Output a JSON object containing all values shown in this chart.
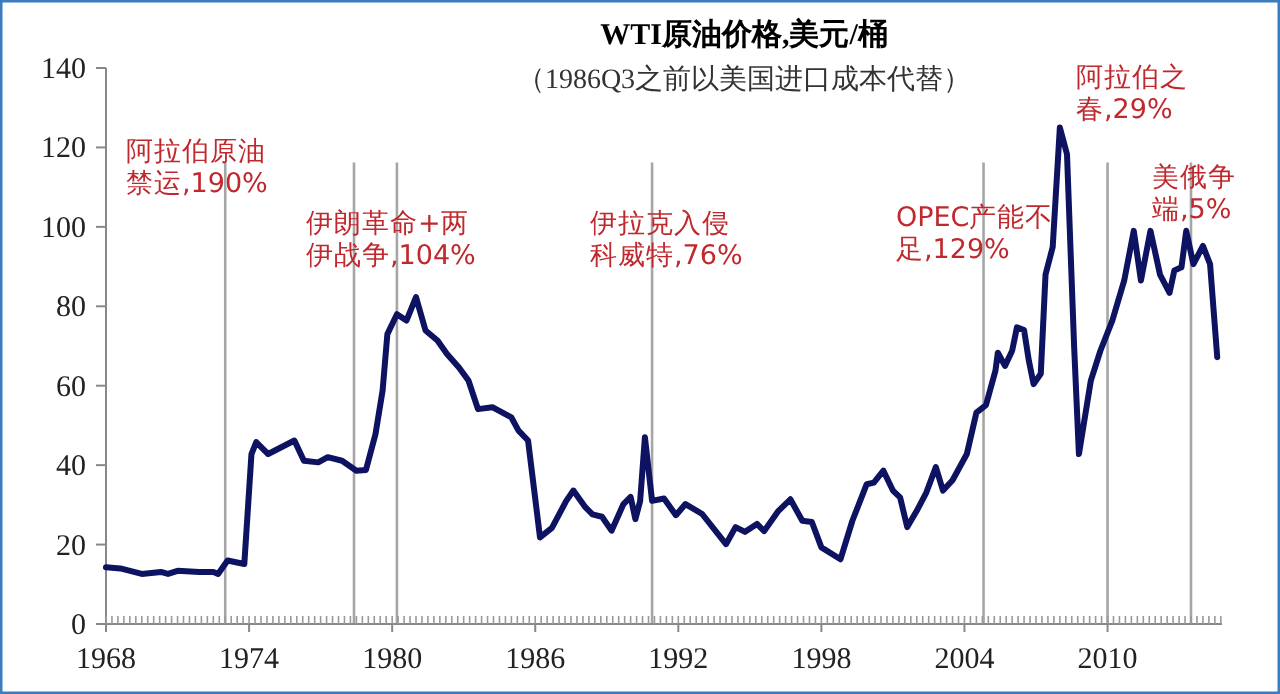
{
  "chart_data": {
    "type": "line",
    "title": "WTI原油价格,美元/桶",
    "subtitle": "（1986Q3之前以美国进口成本代替）",
    "x": [
      1968.0,
      1968.6,
      1969.5,
      1970.3,
      1970.6,
      1971.0,
      1971.9,
      1972.5,
      1972.7,
      1973.1,
      1973.8,
      1974.1,
      1974.3,
      1974.8,
      1975.9,
      1976.3,
      1976.9,
      1977.3,
      1977.9,
      1978.5,
      1978.9,
      1979.3,
      1979.6,
      1979.8,
      1980.2,
      1980.6,
      1981.0,
      1981.4,
      1981.9,
      1982.3,
      1982.8,
      1983.2,
      1983.6,
      1984.2,
      1985.0,
      1985.3,
      1985.7,
      1986.2,
      1986.7,
      1987.3,
      1987.6,
      1988.1,
      1988.4,
      1988.8,
      1989.2,
      1989.7,
      1990.0,
      1990.2,
      1990.4,
      1990.6,
      1990.9,
      1991.4,
      1991.9,
      1992.3,
      1993.0,
      1994.0,
      1994.4,
      1994.8,
      1995.3,
      1995.6,
      1996.2,
      1996.7,
      1997.2,
      1997.6,
      1998.0,
      1998.8,
      1999.3,
      1999.9,
      2000.2,
      2000.6,
      2001.0,
      2001.3,
      2001.6,
      2002.0,
      2002.4,
      2002.8,
      2003.1,
      2003.5,
      2004.1,
      2004.5,
      2004.9,
      2005.3,
      2005.4,
      2005.7,
      2006.0,
      2006.2,
      2006.5,
      2006.7,
      2006.9,
      2007.2,
      2007.4,
      2007.7,
      2008.0,
      2008.3,
      2008.6,
      2008.8,
      2009.3,
      2009.7,
      2010.2,
      2010.7,
      2011.1,
      2011.4,
      2011.8,
      2012.2,
      2012.6,
      2012.8,
      2013.1,
      2013.3,
      2013.6,
      2014.0,
      2014.3,
      2014.6
    ],
    "series": [
      {
        "color": "#0d1261",
        "values": [
          14.3,
          14,
          12.6,
          13.1,
          12.6,
          13.4,
          13.1,
          13.1,
          12.6,
          16,
          15.1,
          42.8,
          45.8,
          42.8,
          46.2,
          41.1,
          40.7,
          42,
          41.1,
          38.6,
          38.8,
          47.8,
          58.8,
          73,
          78,
          76.4,
          82.3,
          73.9,
          71.4,
          68,
          64.6,
          61.3,
          54.1,
          54.6,
          52,
          48.7,
          46.2,
          21.8,
          24.2,
          31,
          33.6,
          29.4,
          27.6,
          27,
          23.5,
          30.2,
          32,
          26.4,
          31,
          47,
          31,
          31.6,
          27.4,
          30.2,
          27.7,
          20.1,
          24.4,
          23.2,
          25.2,
          23.4,
          28.5,
          31.4,
          26,
          25.7,
          19.3,
          16.3,
          26,
          35.2,
          35.6,
          38.6,
          33.6,
          31.9,
          24.4,
          28.5,
          33.1,
          39.5,
          33.6,
          36.2,
          42.8,
          53.2,
          55.1,
          63.8,
          68.3,
          65,
          68.8,
          74.7,
          74,
          66.3,
          60.4,
          63,
          88,
          94.9,
          125,
          118.3,
          69.7,
          42.8,
          61.3,
          68.8,
          76.4,
          86.5,
          99,
          86.5,
          99,
          88,
          83.4,
          89,
          89.8,
          99,
          90.6,
          95.2,
          90.6,
          67.2
        ]
      }
    ],
    "xlim": [
      1968,
      2014.8
    ],
    "xticks": [
      1968,
      1974,
      1980,
      1986,
      1992,
      1998,
      2004,
      2010
    ],
    "ylim": [
      0,
      140
    ],
    "yticks": [
      0,
      20,
      40,
      60,
      80,
      100,
      120,
      140
    ],
    "grid": false,
    "ref_lines": [
      {
        "axis": "x",
        "value": 1973.0,
        "color": "#a6a6a6"
      },
      {
        "axis": "x",
        "value": 1978.4,
        "color": "#a6a6a6"
      },
      {
        "axis": "x",
        "value": 1980.2,
        "color": "#a6a6a6"
      },
      {
        "axis": "x",
        "value": 1990.9,
        "color": "#a6a6a6"
      },
      {
        "axis": "x",
        "value": 2004.8,
        "color": "#a6a6a6"
      },
      {
        "axis": "x",
        "value": 2010.0,
        "color": "#a6a6a6"
      },
      {
        "axis": "x",
        "value": 2013.5,
        "color": "#a6a6a6"
      }
    ],
    "annotations": [
      "阿拉伯原油禁运,190%",
      "伊朗革命+两伊战争,104%",
      "伊拉克入侵科威特,76%",
      "OPEC产能不足,129%",
      "阿拉伯之春,29%",
      "美俄争端,5%"
    ]
  }
}
